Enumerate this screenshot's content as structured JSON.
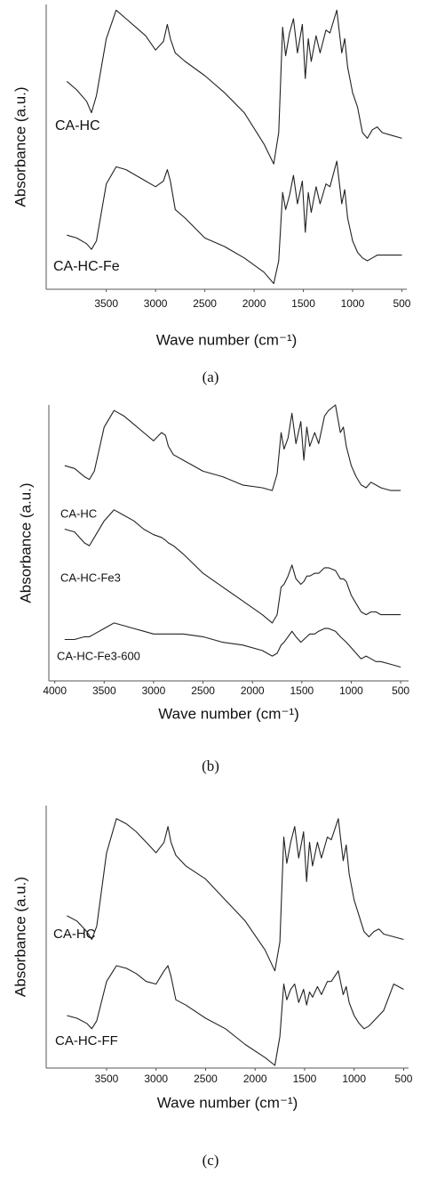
{
  "chart_data": [
    {
      "type": "line",
      "label": "(a)",
      "x_label": "Wave number  (cm⁻¹)",
      "y_label": "Absorbance (a.u.)",
      "xlim": [
        4110,
        450
      ],
      "ylim": [
        0,
        100
      ],
      "xticks": [
        3500,
        3000,
        2500,
        2000,
        1500,
        1000,
        500
      ],
      "x": [
        3900,
        3800,
        3700,
        3650,
        3600,
        3500,
        3400,
        3300,
        3200,
        3100,
        3000,
        2920,
        2880,
        2850,
        2800,
        2700,
        2500,
        2300,
        2100,
        1900,
        1800,
        1750,
        1710,
        1680,
        1640,
        1600,
        1560,
        1510,
        1480,
        1450,
        1420,
        1370,
        1330,
        1270,
        1230,
        1160,
        1110,
        1080,
        1050,
        1000,
        950,
        900,
        850,
        800,
        750,
        700,
        600,
        500
      ],
      "series": [
        {
          "name": "CA-HC",
          "color": "#222222",
          "values": [
            73,
            70,
            66,
            62,
            68,
            88,
            98,
            95,
            92,
            89,
            84,
            87,
            93,
            88,
            83,
            80,
            75,
            69,
            62,
            51,
            44,
            55,
            92,
            82,
            90,
            95,
            83,
            93,
            74,
            88,
            80,
            89,
            83,
            91,
            90,
            98,
            83,
            88,
            78,
            69,
            64,
            55,
            53,
            56,
            57,
            55,
            54,
            53
          ]
        },
        {
          "name": "CA-HC-Fe",
          "color": "#222222",
          "values": [
            19,
            18,
            16,
            14,
            17,
            37,
            43,
            42,
            40,
            38,
            36,
            38,
            42,
            38,
            28,
            25,
            18,
            15,
            11,
            6,
            2,
            10,
            34,
            28,
            33,
            40,
            30,
            38,
            20,
            34,
            27,
            36,
            30,
            37,
            36,
            45,
            30,
            35,
            25,
            17,
            13,
            11,
            10,
            11,
            12,
            12,
            12,
            12
          ]
        }
      ]
    },
    {
      "type": "line",
      "label": "(b)",
      "x_label": "Wave number  (cm⁻¹)",
      "y_label": "Absorbance (a.u.)",
      "xlim": [
        4060,
        420
      ],
      "ylim": [
        0,
        100
      ],
      "xticks": [
        4000,
        3500,
        3000,
        2500,
        2000,
        1500,
        1000,
        500
      ],
      "x": [
        3900,
        3800,
        3700,
        3650,
        3600,
        3500,
        3400,
        3300,
        3200,
        3100,
        3000,
        2920,
        2880,
        2850,
        2800,
        2700,
        2500,
        2300,
        2100,
        1900,
        1800,
        1750,
        1710,
        1680,
        1640,
        1600,
        1560,
        1510,
        1480,
        1450,
        1420,
        1370,
        1330,
        1270,
        1230,
        1160,
        1110,
        1080,
        1050,
        1000,
        950,
        900,
        850,
        800,
        750,
        700,
        600,
        500
      ],
      "series": [
        {
          "name": "CA-HC",
          "color": "#222222",
          "values": [
            78,
            77,
            74,
            73,
            76,
            92,
            98,
            96,
            93,
            90,
            87,
            90,
            89,
            85,
            82,
            80,
            76,
            74,
            71,
            70,
            69,
            75,
            90,
            84,
            88,
            97,
            86,
            94,
            80,
            92,
            85,
            90,
            86,
            96,
            98,
            100,
            90,
            92,
            85,
            78,
            74,
            71,
            70,
            72,
            71,
            70,
            69,
            69
          ]
        },
        {
          "name": "CA-HC-Fe3",
          "color": "#222222",
          "values": [
            55,
            54,
            50,
            49,
            52,
            58,
            62,
            60,
            58,
            55,
            53,
            52,
            51,
            50,
            49,
            46,
            39,
            34,
            29,
            24,
            21,
            24,
            34,
            35,
            38,
            42,
            37,
            35,
            36,
            38,
            38,
            39,
            39,
            41,
            41,
            40,
            37,
            37,
            36,
            31,
            28,
            25,
            24,
            25,
            25,
            24,
            24,
            24
          ]
        },
        {
          "name": "CA-HC-Fe3-600",
          "color": "#222222",
          "values": [
            15,
            15,
            16,
            16,
            17,
            19,
            21,
            20,
            19,
            18,
            17,
            17,
            17,
            17,
            17,
            17,
            16,
            14,
            13,
            11,
            9,
            10,
            13,
            14,
            16,
            18,
            16,
            14,
            15,
            16,
            17,
            17,
            18,
            19,
            19,
            18,
            16,
            15,
            14,
            12,
            10,
            8,
            9,
            8,
            7,
            7,
            6,
            5
          ]
        }
      ]
    },
    {
      "type": "line",
      "label": "(c)",
      "x_label": "Wave number  (cm⁻¹)",
      "y_label": "Absorbance (a.u.)",
      "xlim": [
        4110,
        450
      ],
      "ylim": [
        0,
        100
      ],
      "xticks": [
        3500,
        3000,
        2500,
        2000,
        1500,
        1000,
        500
      ],
      "x": [
        3900,
        3800,
        3700,
        3650,
        3600,
        3500,
        3400,
        3300,
        3200,
        3100,
        3000,
        2920,
        2880,
        2850,
        2800,
        2700,
        2500,
        2300,
        2100,
        1900,
        1800,
        1750,
        1710,
        1680,
        1640,
        1600,
        1560,
        1510,
        1480,
        1450,
        1420,
        1370,
        1330,
        1270,
        1230,
        1160,
        1110,
        1080,
        1050,
        1000,
        950,
        900,
        850,
        800,
        750,
        700,
        600,
        500
      ],
      "series": [
        {
          "name": "CA-HC",
          "color": "#222222",
          "values": [
            58,
            56,
            52,
            49,
            54,
            82,
            95,
            93,
            90,
            86,
            82,
            86,
            92,
            86,
            81,
            77,
            72,
            64,
            56,
            45,
            37,
            48,
            88,
            78,
            86,
            92,
            80,
            90,
            71,
            86,
            77,
            86,
            80,
            88,
            87,
            95,
            79,
            85,
            74,
            64,
            58,
            52,
            50,
            52,
            53,
            51,
            50,
            49
          ]
        },
        {
          "name": "CA-HC-FF",
          "color": "#222222",
          "values": [
            20,
            19,
            17,
            15,
            18,
            33,
            39,
            38,
            36,
            33,
            32,
            37,
            39,
            35,
            26,
            24,
            19,
            15,
            9,
            4,
            1,
            12,
            32,
            26,
            30,
            32,
            25,
            30,
            24,
            29,
            27,
            31,
            28,
            33,
            33,
            37,
            28,
            31,
            25,
            20,
            17,
            15,
            16,
            18,
            20,
            22,
            32,
            30
          ]
        }
      ]
    }
  ]
}
